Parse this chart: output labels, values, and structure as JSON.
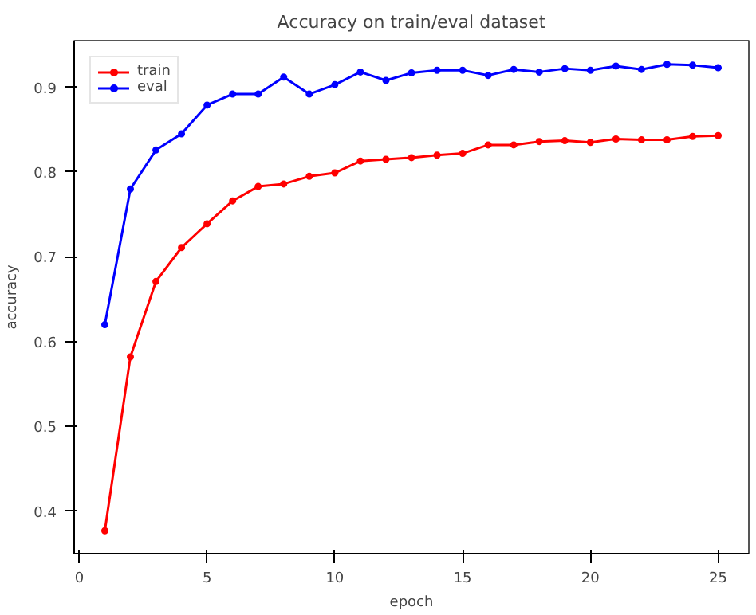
{
  "chart_data": {
    "type": "line",
    "title": "Accuracy on train/eval dataset",
    "xlabel": "epoch",
    "ylabel": "accuracy",
    "x": [
      1,
      2,
      3,
      4,
      5,
      6,
      7,
      8,
      9,
      10,
      11,
      12,
      13,
      14,
      15,
      16,
      17,
      18,
      19,
      20,
      21,
      22,
      23,
      24,
      25
    ],
    "series": [
      {
        "name": "train",
        "color": "#ff0000",
        "values": [
          0.377,
          0.582,
          0.671,
          0.711,
          0.739,
          0.766,
          0.783,
          0.786,
          0.795,
          0.799,
          0.813,
          0.815,
          0.817,
          0.82,
          0.822,
          0.832,
          0.832,
          0.836,
          0.837,
          0.835,
          0.839,
          0.838,
          0.838,
          0.842,
          0.843
        ]
      },
      {
        "name": "eval",
        "color": "#0000ff",
        "values": [
          0.62,
          0.78,
          0.826,
          0.845,
          0.879,
          0.892,
          0.892,
          0.912,
          0.892,
          0.903,
          0.918,
          0.908,
          0.917,
          0.92,
          0.92,
          0.914,
          0.921,
          0.918,
          0.922,
          0.92,
          0.925,
          0.921,
          0.927,
          0.926,
          0.923
        ]
      }
    ],
    "xlim": [
      -0.2,
      26.2
    ],
    "ylim": [
      0.35,
      0.955
    ],
    "xticks": [
      0,
      5,
      10,
      15,
      20,
      25
    ],
    "yticks": [
      0.4,
      0.5,
      0.6,
      0.7,
      0.8,
      0.9
    ],
    "legend": "top left",
    "marker": "circle",
    "line_style": "solid",
    "grid": false
  }
}
